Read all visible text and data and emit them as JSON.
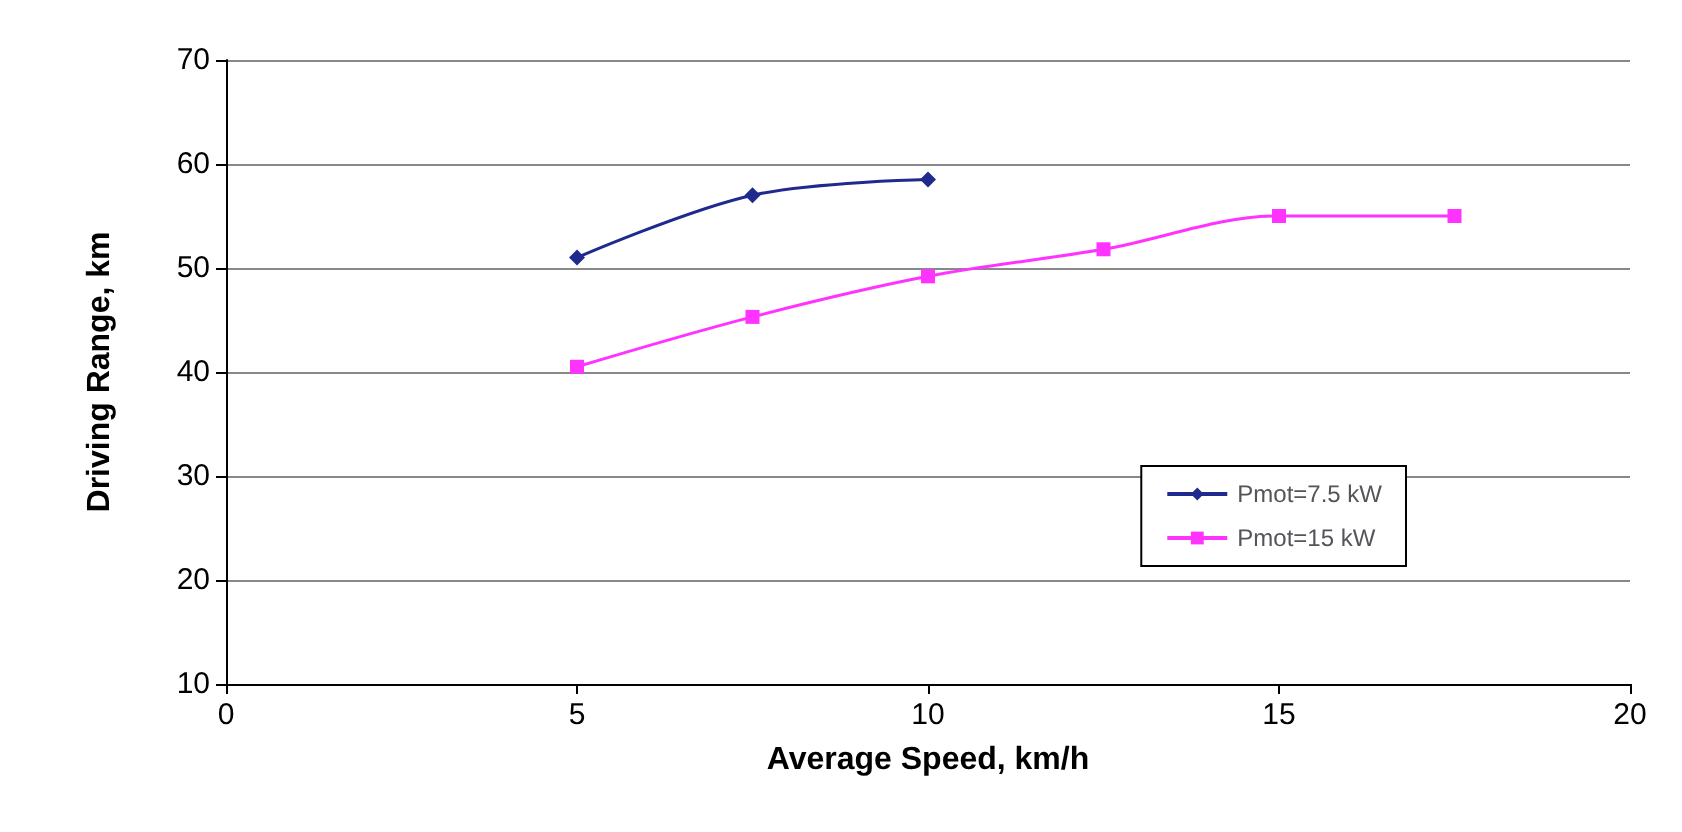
{
  "chart_data": {
    "type": "line",
    "xlabel": "Average Speed, km/h",
    "ylabel": "Driving Range, km",
    "xlim": [
      0,
      20
    ],
    "xticks": [
      0,
      5,
      10,
      15,
      20
    ],
    "ylim": [
      10,
      70
    ],
    "yticks": [
      10,
      20,
      30,
      40,
      50,
      60,
      70
    ],
    "grid": "y",
    "legend": "right",
    "series": [
      {
        "name": "Pmot=7.5 kW",
        "color": "#1f2a8c",
        "marker": "diamond",
        "x": [
          5,
          7.5,
          10
        ],
        "values": [
          51,
          57,
          58.5
        ]
      },
      {
        "name": "Pmot=15 kW",
        "color": "#ff33ff",
        "marker": "square",
        "x": [
          5,
          7.5,
          10,
          12.5,
          15,
          17.5
        ],
        "values": [
          40.5,
          45.3,
          49.2,
          51.8,
          55,
          55
        ]
      }
    ]
  }
}
